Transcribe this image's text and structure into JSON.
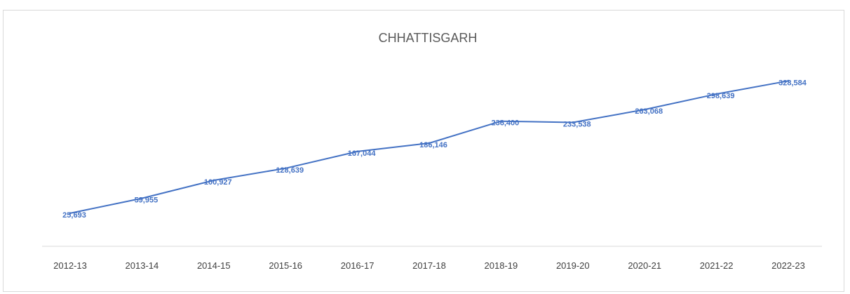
{
  "chart_data": {
    "type": "line",
    "title": "CHHATTISGARH",
    "xlabel": "",
    "ylabel": "",
    "categories": [
      "2012-13",
      "2013-14",
      "2014-15",
      "2015-16",
      "2016-17",
      "2017-18",
      "2018-19",
      "2019-20",
      "2020-21",
      "2021-22",
      "2022-23"
    ],
    "series": [
      {
        "values": [
          25693,
          59955,
          100927,
          128639,
          167044,
          186146,
          236400,
          233538,
          263068,
          298639,
          328584
        ],
        "labels": [
          "25,693",
          "59,955",
          "100,927",
          "128,639",
          "167,044",
          "186,146",
          "236,400",
          "233,538",
          "263,068",
          "298,639",
          "328,584"
        ],
        "color": "#4472c4"
      }
    ],
    "grid": false,
    "legend": "none",
    "axis_color": "#d9d9d9"
  }
}
